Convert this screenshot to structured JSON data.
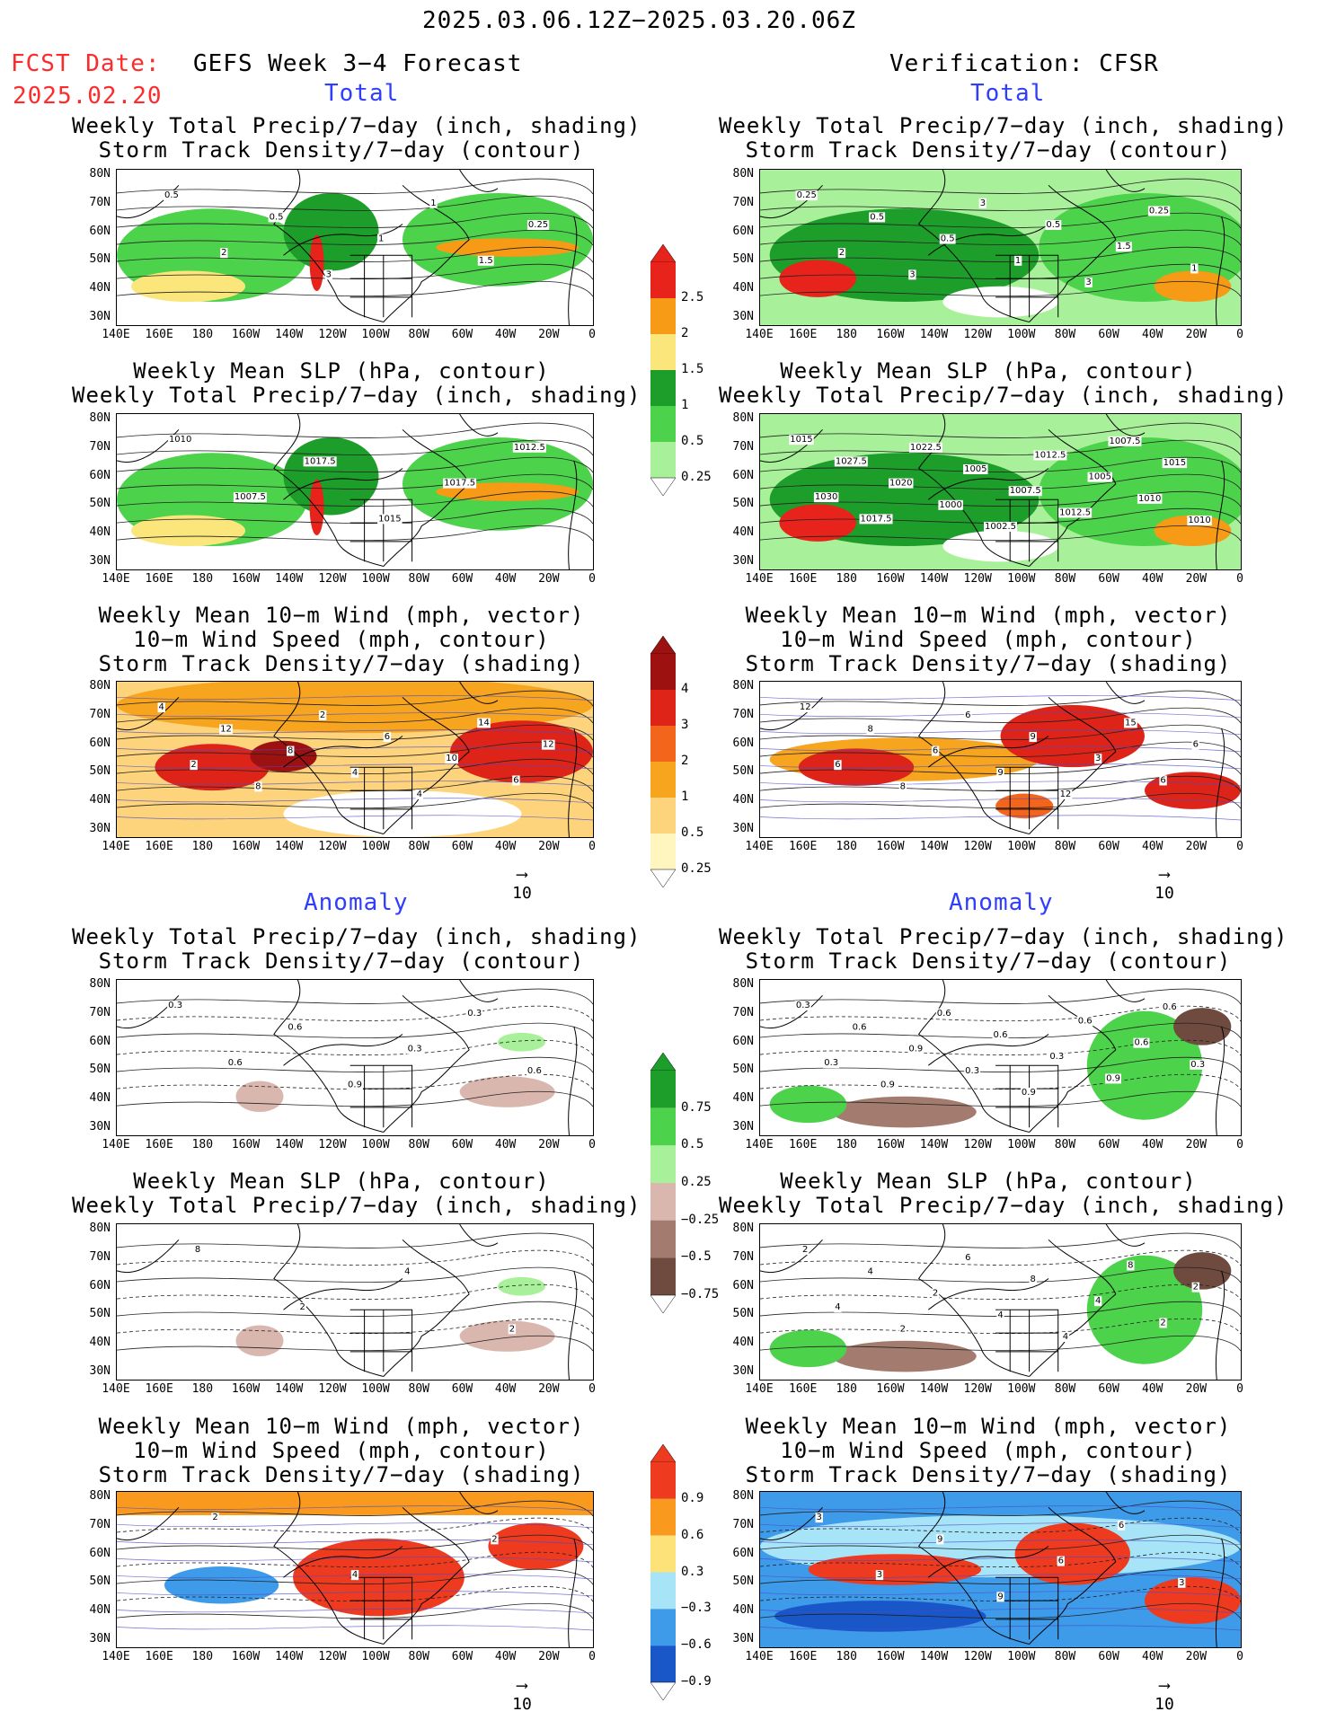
{
  "header": {
    "period": "2025.03.06.12Z−2025.03.20.06Z",
    "fcst_label": "FCST Date:",
    "fcst_date": "2025.02.20",
    "left_title": "GEFS Week 3−4 Forecast",
    "right_title": "Verification: CFSR",
    "section_total": "Total",
    "section_anomaly": "Anomaly"
  },
  "titles": {
    "precip_storm": [
      "Weekly Total Precip/7−day (inch, shading)",
      "Storm Track Density/7−day (contour)"
    ],
    "slp_precip": [
      "Weekly Mean SLP (hPa, contour)",
      "Weekly Total Precip/7−day (inch, shading)"
    ],
    "wind_storm": [
      "Weekly Mean 10−m Wind (mph, vector)",
      "10−m Wind Speed (mph, contour)",
      "Storm Track Density/7−day (shading)"
    ]
  },
  "axes": {
    "lat_labels": [
      "80N",
      "70N",
      "60N",
      "50N",
      "40N",
      "30N"
    ],
    "lon_labels": [
      "140E",
      "160E",
      "180",
      "160W",
      "140W",
      "120W",
      "100W",
      "80W",
      "60W",
      "40W",
      "20W",
      "0"
    ]
  },
  "vector_ref": "10",
  "colorbars": {
    "precip_total": {
      "labels": [
        "2.5",
        "2",
        "1.5",
        "1",
        "0.5",
        "0.25"
      ],
      "colors": [
        "#e8231b",
        "#f79a16",
        "#fbe67c",
        "#1d9e2a",
        "#4dd24b",
        "#a9f09a"
      ]
    },
    "storm_total": {
      "labels": [
        "4",
        "3",
        "2",
        "1",
        "0.5",
        "0.25"
      ],
      "colors": [
        "#9e1111",
        "#de2418",
        "#f2651b",
        "#f7a41e",
        "#fdd37c",
        "#fff6bf"
      ]
    },
    "precip_anom": {
      "labels": [
        "0.75",
        "0.5",
        "0.25",
        "−0.25",
        "−0.5",
        "−0.75"
      ],
      "colors": [
        "#1d9e2a",
        "#4dd24b",
        "#a9f09a",
        "#d9b7ae",
        "#a37b6f",
        "#6e4a3f"
      ]
    },
    "wind_anom": {
      "labels": [
        "0.9",
        "0.6",
        "0.3",
        "−0.3",
        "−0.6",
        "−0.9"
      ],
      "colors": [
        "#ee3b20",
        "#f99a1e",
        "#fde27a",
        "#a8e4f7",
        "#3d9be9",
        "#1957c9"
      ]
    }
  },
  "contour_labels": {
    "p1": [
      "0.5",
      "2",
      "0.5",
      "3",
      "1",
      "1",
      "1.5",
      "0.25"
    ],
    "p2": [
      "0.25",
      "2",
      "0.5",
      "3",
      "0.5",
      "3",
      "1",
      "0.5",
      "3",
      "1.5",
      "0.25",
      "1"
    ],
    "p3": [
      "1010",
      "1007.5",
      "1017.5",
      "1015",
      "1017.5",
      "1012.5"
    ],
    "p4": [
      "1015",
      "1030",
      "1027.5",
      "1017.5",
      "1020",
      "1022.5",
      "1000",
      "1005",
      "1002.5",
      "1007.5",
      "1012.5",
      "1012.5",
      "1005",
      "1007.5",
      "1010",
      "1015",
      "1010"
    ],
    "p5": [
      "4",
      "2",
      "12",
      "8",
      "8",
      "2",
      "4",
      "6",
      "4",
      "10",
      "14",
      "6",
      "12"
    ],
    "p6": [
      "12",
      "6",
      "8",
      "8",
      "6",
      "6",
      "9",
      "9",
      "12",
      "3",
      "15",
      "6",
      "6"
    ],
    "p7": [
      "0.3",
      "0.6",
      "0.6",
      "0.9",
      "0.3",
      "0.3",
      "0.6"
    ],
    "p8": [
      "0.3",
      "0.3",
      "0.6",
      "0.9",
      "0.9",
      "0.6",
      "0.3",
      "0.6",
      "0.9",
      "0.3",
      "0.6",
      "0.9",
      "0.6",
      "0.6",
      "0.3"
    ],
    "p9": [
      "8",
      "2",
      "4",
      "2"
    ],
    "p10": [
      "2",
      "4",
      "4",
      "2",
      "2",
      "6",
      "4",
      "8",
      "4",
      "4",
      "8",
      "2",
      "2"
    ],
    "p11": [
      "2",
      "4",
      "2"
    ],
    "p12": [
      "3",
      "3",
      "9",
      "9",
      "6",
      "6",
      "3"
    ]
  }
}
